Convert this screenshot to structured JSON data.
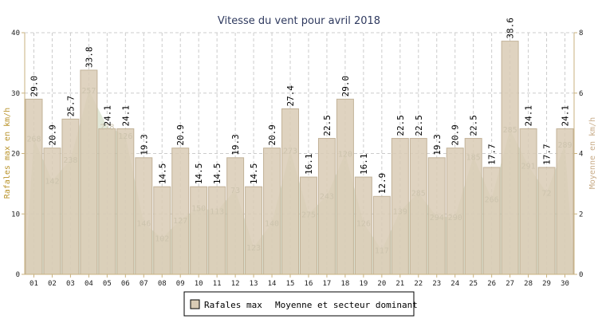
{
  "chart_data": {
    "type": "bar",
    "title": "Vitesse du vent pour avril 2018",
    "ylabel_left": "Rafales max en km/h",
    "ylabel_right": "Moyenne en km/h",
    "ylim_left": [
      0,
      40
    ],
    "ylim_right": [
      0,
      8
    ],
    "yticks_left": [
      "0",
      "10",
      "20",
      "30",
      "40"
    ],
    "yticks_right": [
      "0",
      "2",
      "4",
      "6",
      "8"
    ],
    "grid": true,
    "legend_position": "bottom",
    "categories": [
      "01",
      "02",
      "03",
      "04",
      "05",
      "06",
      "07",
      "08",
      "09",
      "10",
      "11",
      "12",
      "13",
      "14",
      "15",
      "16",
      "17",
      "18",
      "19",
      "20",
      "21",
      "22",
      "23",
      "24",
      "25",
      "26",
      "27",
      "28",
      "29",
      "30"
    ],
    "series": [
      {
        "name": "Rafales max",
        "axis": "left",
        "color": "#d9cbb5",
        "values": [
          29.0,
          20.9,
          25.7,
          33.8,
          24.1,
          24.1,
          19.3,
          14.5,
          20.9,
          14.5,
          14.5,
          19.3,
          14.5,
          20.9,
          27.4,
          16.1,
          22.5,
          29.0,
          16.1,
          12.9,
          22.5,
          22.5,
          19.3,
          20.9,
          22.5,
          17.7,
          38.6,
          24.1,
          17.7,
          24.1
        ],
        "labels": [
          "29.0",
          "20.9",
          "25.7",
          "33.8",
          "24.1",
          "24.1",
          "19.3",
          "14.5",
          "20.9",
          "14.5",
          "14.5",
          "19.3",
          "14.5",
          "20.9",
          "27.4",
          "16.1",
          "22.5",
          "29.0",
          "16.1",
          "12.9",
          "22.5",
          "22.5",
          "19.3",
          "20.9",
          "22.5",
          "17.7",
          "38.6",
          "24.1",
          "17.7",
          "24.1"
        ]
      },
      {
        "name": "Moyenne et secteur dominant",
        "axis": "right",
        "color": "#c9d6b8",
        "values": [
          4.5,
          3.1,
          3.8,
          6.1,
          4.9,
          4.6,
          1.7,
          1.2,
          1.8,
          2.2,
          2.1,
          2.8,
          0.9,
          1.7,
          4.1,
          2.0,
          2.6,
          4.0,
          1.7,
          0.8,
          2.1,
          2.7,
          1.9,
          1.9,
          3.9,
          2.5,
          4.8,
          3.6,
          2.7,
          4.3
        ],
        "directions": [
          "268",
          "142",
          "238",
          "257",
          "278",
          "126",
          "146",
          "102",
          "127",
          "150",
          "113",
          "73",
          "123",
          "140",
          "273",
          "275",
          "243",
          "120",
          "126",
          "117",
          "139",
          "285",
          "294",
          "290",
          "185",
          "266",
          "285",
          "291",
          "72",
          "289"
        ]
      }
    ]
  },
  "legend": {
    "item1": "Rafales max",
    "item2": "Moyenne et secteur dominant"
  },
  "colors": {
    "bar_fill": "#d9cbb5",
    "bar_stroke": "#c2b298",
    "avg_fill": "#c9d6b8",
    "title": "#2f3a5f",
    "left_axis_label": "#b9932a",
    "right_axis_label": "#c9ad8a",
    "grid": "#cccccc",
    "axis": "#c9b27f"
  }
}
